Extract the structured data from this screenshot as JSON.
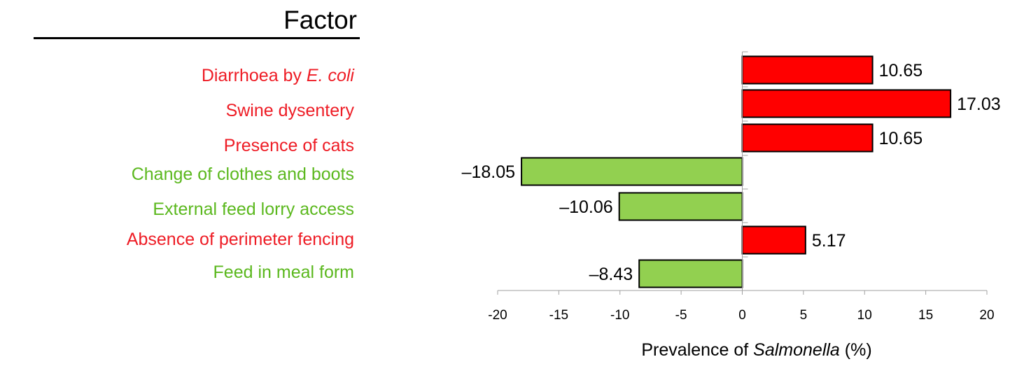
{
  "header": {
    "title": "Factor"
  },
  "chart_data": {
    "type": "bar",
    "orientation": "horizontal",
    "categories": [
      "Diarrhoea by E. coli",
      "Swine dysentery",
      "Presence of cats",
      "Change of clothes and boots",
      "External feed lorry access",
      "Absence of perimeter fencing",
      "Feed in meal form"
    ],
    "category_parts": [
      [
        {
          "text": "Diarrhoea by ",
          "italic": false
        },
        {
          "text": "E. coli",
          "italic": true
        }
      ],
      [
        {
          "text": "Swine dysentery",
          "italic": false
        }
      ],
      [
        {
          "text": "Presence of cats",
          "italic": false
        }
      ],
      [
        {
          "text": "Change of clothes and boots",
          "italic": false
        }
      ],
      [
        {
          "text": "External feed lorry access",
          "italic": false
        }
      ],
      [
        {
          "text": "Absence of perimeter fencing",
          "italic": false
        }
      ],
      [
        {
          "text": "Feed in meal form",
          "italic": false
        }
      ]
    ],
    "values": [
      10.65,
      17.03,
      10.65,
      -18.05,
      -10.06,
      5.17,
      -8.43
    ],
    "value_labels": [
      "10.65",
      "17.03",
      "10.65",
      "–18.05",
      "–10.06",
      "5.17",
      "–8.43"
    ],
    "xlabel_parts": [
      {
        "text": "Prevalence of ",
        "italic": false
      },
      {
        "text": "Salmonella",
        "italic": true
      },
      {
        "text": " (%)",
        "italic": false
      }
    ],
    "xlim": [
      -20,
      20
    ],
    "xticks": [
      -20,
      -15,
      -10,
      -5,
      0,
      5,
      10,
      15,
      20
    ],
    "xtick_labels": [
      "-20",
      "-15",
      "-10",
      "-5",
      "0",
      "5",
      "10",
      "15",
      "20"
    ],
    "grid": false,
    "legend": "none",
    "colors": {
      "positive": "#ff0000",
      "negative": "#92d050",
      "positive_label": "#ee1c25",
      "negative_label": "#5bb81e",
      "bar_stroke": "#000000",
      "axis": "#a0a0a0"
    }
  }
}
